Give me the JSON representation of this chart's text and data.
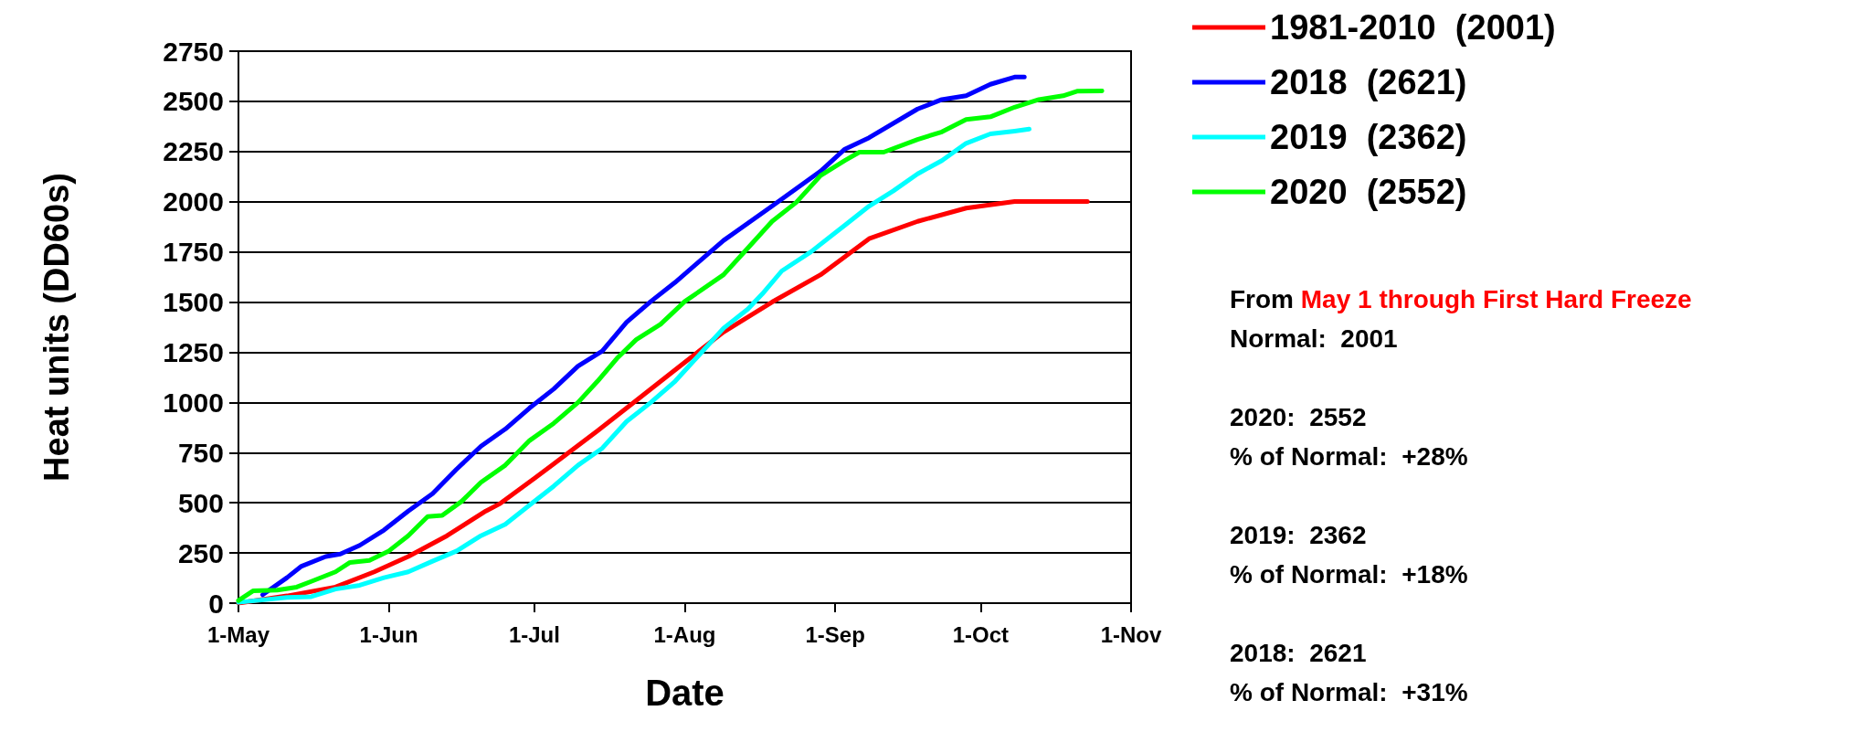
{
  "chart_data": {
    "type": "line",
    "xlabel": "Date",
    "ylabel": "Heat units (DD60s)",
    "xlim": [
      "--05-01",
      "--11-01"
    ],
    "xticks": [
      {
        "value": "--05-01",
        "label": "1-May"
      },
      {
        "value": "--06-01",
        "label": "1-Jun"
      },
      {
        "value": "--07-01",
        "label": "1-Jul"
      },
      {
        "value": "--08-01",
        "label": "1-Aug"
      },
      {
        "value": "--09-01",
        "label": "1-Sep"
      },
      {
        "value": "--10-01",
        "label": "1-Oct"
      },
      {
        "value": "--11-01",
        "label": "1-Nov"
      }
    ],
    "ylim": [
      0,
      2750
    ],
    "yticks": [
      0,
      250,
      500,
      750,
      1000,
      1250,
      1500,
      1750,
      2000,
      2250,
      2500,
      2750
    ],
    "grid": "y",
    "legend": "top right",
    "marker": "none",
    "line_style": "solid",
    "series": [
      {
        "name": "1981-2010  (2001)",
        "color": "#ff0000",
        "x": [
          "--05-01",
          "--05-11",
          "--05-21",
          "--05-29",
          "--06-05",
          "--06-13",
          "--06-21",
          "--06-24",
          "--07-01",
          "--07-14",
          "--07-22",
          "--08-01",
          "--08-09",
          "--08-19",
          "--08-29",
          "--09-08",
          "--09-18",
          "--09-28",
          "--10-08",
          "--10-23"
        ],
        "values": [
          0,
          36,
          80,
          156,
          232,
          336,
          459,
          497,
          621,
          858,
          1010,
          1200,
          1351,
          1500,
          1636,
          1816,
          1902,
          1968,
          2001,
          2001
        ]
      },
      {
        "name": "2018  (2621)",
        "color": "#0000ff",
        "x": [
          "--05-06",
          "--05-11",
          "--05-14",
          "--05-19",
          "--05-22",
          "--05-26",
          "--05-31",
          "--06-05",
          "--06-10",
          "--06-15",
          "--06-20",
          "--06-25",
          "--06-30",
          "--07-05",
          "--07-10",
          "--07-15",
          "--07-20",
          "--07-25",
          "--07-30",
          "--08-09",
          "--08-19",
          "--08-29",
          "--09-03",
          "--09-08",
          "--09-18",
          "--09-23",
          "--09-28",
          "--10-03",
          "--10-08",
          "--10-10"
        ],
        "values": [
          42,
          127,
          184,
          232,
          245,
          288,
          364,
          459,
          545,
          668,
          782,
          867,
          972,
          1067,
          1181,
          1256,
          1399,
          1503,
          1598,
          1807,
          1978,
          2152,
          2262,
          2319,
          2462,
          2509,
          2528,
          2585,
          2621,
          2621
        ]
      },
      {
        "name": "2019  (2362)",
        "color": "#00ffff",
        "x": [
          "--05-01",
          "--05-11",
          "--05-16",
          "--05-21",
          "--05-26",
          "--05-31",
          "--06-05",
          "--06-10",
          "--06-15",
          "--06-20",
          "--06-25",
          "--06-30",
          "--07-05",
          "--07-10",
          "--07-15",
          "--07-20",
          "--07-25",
          "--07-30",
          "--08-04",
          "--08-09",
          "--08-14",
          "--08-17",
          "--08-21",
          "--08-27",
          "--09-03",
          "--09-08",
          "--09-13",
          "--09-18",
          "--09-23",
          "--09-28",
          "--10-03",
          "--10-08",
          "--10-11"
        ],
        "values": [
          4,
          28,
          32,
          70,
          89,
          127,
          156,
          209,
          260,
          336,
          393,
          488,
          583,
          687,
          772,
          905,
          1000,
          1105,
          1237,
          1370,
          1465,
          1541,
          1655,
          1750,
          1883,
          1978,
          2054,
          2139,
          2205,
          2291,
          2338,
          2352,
          2362
        ]
      },
      {
        "name": "2020  (2552)",
        "color": "#00ff00",
        "x": [
          "--05-01",
          "--05-04",
          "--05-09",
          "--05-13",
          "--05-16",
          "--05-21",
          "--05-24",
          "--05-28",
          "--06-01",
          "--06-05",
          "--06-09",
          "--06-12",
          "--06-16",
          "--06-20",
          "--06-25",
          "--06-30",
          "--07-05",
          "--07-10",
          "--07-14",
          "--07-18",
          "--07-22",
          "--07-27",
          "--08-01",
          "--08-09",
          "--08-14",
          "--08-19",
          "--08-24",
          "--08-29",
          "--09-03",
          "--09-06",
          "--09-11",
          "--09-18",
          "--09-23",
          "--09-28",
          "--10-03",
          "--10-08",
          "--10-13",
          "--10-18",
          "--10-21",
          "--10-26"
        ],
        "values": [
          13,
          61,
          65,
          80,
          108,
          156,
          203,
          213,
          260,
          336,
          431,
          437,
          507,
          602,
          687,
          810,
          896,
          1000,
          1105,
          1219,
          1313,
          1389,
          1503,
          1636,
          1769,
          1902,
          1997,
          2130,
          2205,
          2247,
          2247,
          2310,
          2348,
          2410,
          2423,
          2471,
          2509,
          2528,
          2551,
          2552
        ]
      }
    ],
    "annotations": [
      "From",
      "May 1 through First Hard Freeze",
      "Normal:  2001",
      "2020:  2552",
      "% of Normal:  +28%",
      "2019:  2362",
      "% of Normal:  +18%",
      "2018:  2621",
      "% of Normal:  +31%"
    ]
  }
}
